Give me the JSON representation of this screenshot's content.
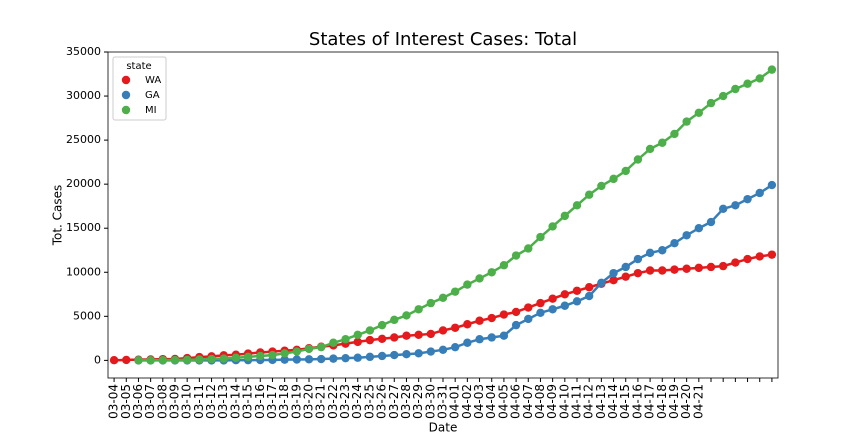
{
  "chart_data": {
    "type": "pointplot",
    "title": "States of Interest Cases: Total",
    "x_label": "Date",
    "y_label": "Tot. Cases",
    "legend_title": "state",
    "legend_position": "upper left",
    "categories": [
      "03-04",
      "03-05",
      "03-06",
      "03-07",
      "03-08",
      "03-09",
      "03-10",
      "03-11",
      "03-12",
      "03-13",
      "03-14",
      "03-15",
      "03-16",
      "03-17",
      "03-18",
      "03-19",
      "03-20",
      "03-21",
      "03-22",
      "03-23",
      "03-24",
      "03-25",
      "03-26",
      "03-27",
      "03-28",
      "03-29",
      "03-30",
      "03-31",
      "04-01",
      "04-02",
      "04-03",
      "04-04",
      "04-05",
      "04-06",
      "04-07",
      "04-08",
      "04-09",
      "04-10",
      "04-11",
      "04-12",
      "04-13",
      "04-14",
      "04-15",
      "04-16",
      "04-17",
      "04-18",
      "04-19",
      "04-20",
      "04-21",
      null,
      null,
      null,
      null,
      null,
      null
    ],
    "series": [
      {
        "name": "WA",
        "color": "#e41a1c",
        "values": [
          20,
          50,
          80,
          100,
          140,
          160,
          260,
          370,
          460,
          570,
          640,
          770,
          900,
          1000,
          1100,
          1200,
          1380,
          1550,
          1700,
          1900,
          2100,
          2300,
          2450,
          2600,
          2800,
          2900,
          3000,
          3400,
          3700,
          4100,
          4500,
          4800,
          5200,
          5500,
          6000,
          6500,
          7000,
          7500,
          7900,
          8300,
          8700,
          9100,
          9500,
          9900,
          10200,
          10200,
          10300,
          10400,
          10500,
          10600,
          10700,
          11100,
          11500,
          11800,
          12000
        ]
      },
      {
        "name": "GA",
        "color": "#377eb8",
        "values": [
          null,
          null,
          0,
          0,
          0,
          0,
          0,
          0,
          0,
          0,
          20,
          30,
          40,
          50,
          80,
          100,
          120,
          150,
          200,
          250,
          300,
          400,
          500,
          600,
          700,
          800,
          1000,
          1200,
          1500,
          2000,
          2400,
          2600,
          2800,
          4000,
          4700,
          5400,
          5800,
          6200,
          6700,
          7300,
          8800,
          9900,
          10600,
          11500,
          12200,
          12500,
          13300,
          14200,
          15000,
          15700,
          17200,
          17600,
          18300,
          19000,
          19900
        ]
      },
      {
        "name": "MI",
        "color": "#4daf4a",
        "values": [
          null,
          null,
          5,
          10,
          20,
          40,
          60,
          100,
          150,
          200,
          300,
          400,
          500,
          600,
          800,
          1000,
          1300,
          1500,
          2000,
          2400,
          2900,
          3400,
          4000,
          4600,
          5100,
          5800,
          6500,
          7100,
          7800,
          8600,
          9300,
          10000,
          10800,
          11900,
          12700,
          14000,
          15200,
          16400,
          17600,
          18800,
          19800,
          20600,
          21500,
          22800,
          24000,
          24700,
          25700,
          27100,
          28100,
          29200,
          30000,
          30800,
          31400,
          32000,
          33000
        ]
      }
    ],
    "ylim": [
      -2000,
      35000
    ],
    "yticks": [
      0,
      5000,
      10000,
      15000,
      20000,
      25000,
      30000,
      35000
    ],
    "grid": false
  }
}
